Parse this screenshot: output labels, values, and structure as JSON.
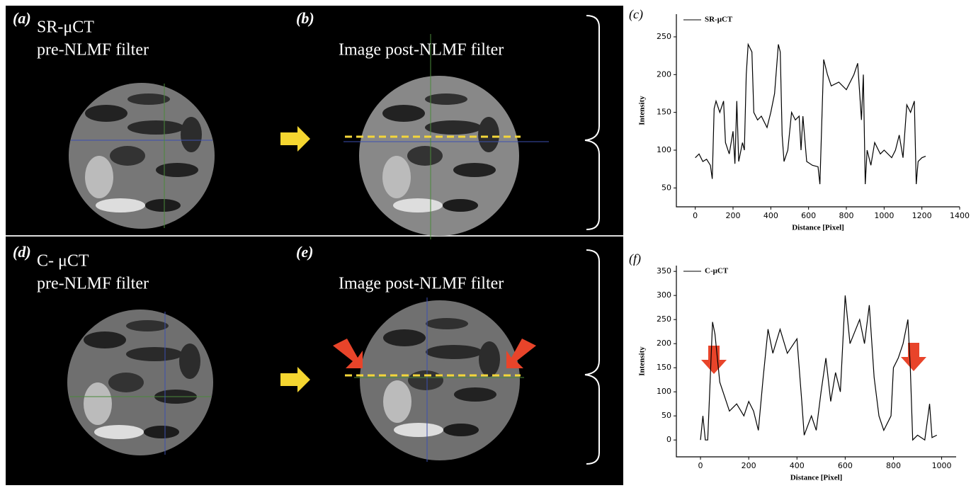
{
  "panels": [
    {
      "label": "(a)",
      "lines": [
        "SR-μCT",
        "pre-NLMF filter"
      ]
    },
    {
      "label": "(b)",
      "lines": [
        "Image post-NLMF filter"
      ]
    },
    {
      "label": "(d)",
      "lines": [
        "C- μCT",
        "pre-NLMF filter"
      ]
    },
    {
      "label": "(e)",
      "lines": [
        "Image post-NLMF filter"
      ]
    }
  ],
  "chart_data": [
    {
      "type": "line",
      "label": "(c)",
      "xlabel": "Distance [Pixel]",
      "ylabel": "Intensity",
      "x": [
        0,
        20,
        40,
        60,
        80,
        90,
        100,
        110,
        130,
        150,
        160,
        180,
        200,
        210,
        220,
        230,
        250,
        260,
        270,
        280,
        300,
        310,
        330,
        350,
        380,
        400,
        420,
        440,
        450,
        460,
        470,
        490,
        510,
        530,
        550,
        560,
        570,
        590,
        620,
        650,
        660,
        680,
        700,
        720,
        760,
        800,
        840,
        860,
        880,
        890,
        900,
        910,
        930,
        950,
        980,
        1000,
        1040,
        1060,
        1080,
        1100,
        1120,
        1140,
        1160,
        1170,
        1180,
        1200,
        1220
      ],
      "series": [
        {
          "name": "SR-μCT",
          "color": "#000000",
          "values": [
            90,
            95,
            85,
            88,
            80,
            62,
            155,
            165,
            150,
            165,
            110,
            95,
            125,
            82,
            165,
            85,
            110,
            100,
            200,
            240,
            230,
            150,
            140,
            145,
            130,
            150,
            175,
            240,
            230,
            120,
            85,
            100,
            150,
            140,
            145,
            100,
            145,
            85,
            80,
            78,
            55,
            220,
            200,
            185,
            190,
            180,
            200,
            215,
            140,
            200,
            55,
            100,
            80,
            110,
            95,
            100,
            90,
            100,
            120,
            90,
            160,
            150,
            165,
            55,
            85,
            90,
            92
          ]
        }
      ],
      "xlim": [
        -100,
        1400
      ],
      "xticks": [
        0,
        200,
        400,
        600,
        800,
        1000,
        1200,
        1400
      ],
      "ylim": [
        25,
        280
      ],
      "yticks": [
        50,
        100,
        150,
        200,
        250
      ]
    },
    {
      "type": "line",
      "label": "(f)",
      "xlabel": "Distance [Pixel]",
      "ylabel": "Intensity",
      "x": [
        0,
        10,
        20,
        30,
        50,
        60,
        80,
        100,
        120,
        150,
        180,
        200,
        220,
        240,
        260,
        280,
        300,
        330,
        360,
        400,
        420,
        430,
        460,
        480,
        500,
        520,
        540,
        560,
        580,
        600,
        620,
        660,
        680,
        700,
        720,
        740,
        760,
        790,
        800,
        820,
        840,
        860,
        870,
        880,
        900,
        930,
        950,
        960,
        980
      ],
      "series": [
        {
          "name": "C-μCT",
          "color": "#000000",
          "values": [
            0,
            50,
            0,
            0,
            245,
            220,
            120,
            90,
            60,
            75,
            50,
            80,
            60,
            20,
            130,
            230,
            180,
            230,
            180,
            210,
            80,
            10,
            50,
            20,
            100,
            170,
            80,
            140,
            100,
            300,
            200,
            250,
            200,
            280,
            130,
            50,
            20,
            50,
            150,
            170,
            200,
            250,
            150,
            0,
            10,
            0,
            75,
            5,
            10
          ]
        }
      ],
      "xlim": [
        -100,
        1060
      ],
      "xticks": [
        0,
        200,
        400,
        600,
        800,
        1000
      ],
      "ylim": [
        -35,
        362
      ],
      "yticks": [
        0,
        50,
        100,
        150,
        200,
        250,
        300,
        350
      ]
    }
  ]
}
